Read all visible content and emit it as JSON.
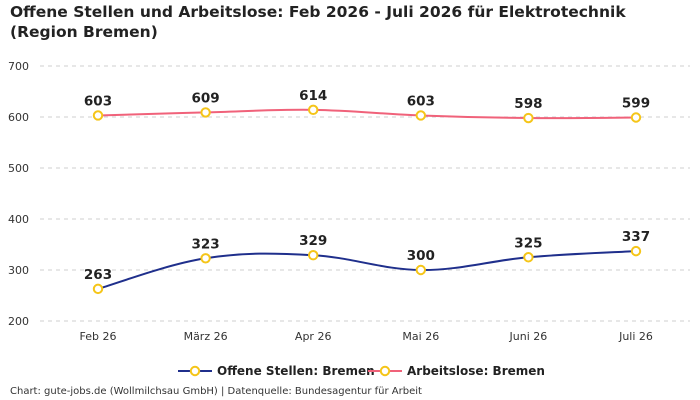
{
  "chart_data": {
    "type": "line",
    "title": "Offene Stellen und Arbeitslose: Feb 2026 - Juli 2026 für Elektrotechnik (Region Bremen)",
    "categories": [
      "Feb 26",
      "März 26",
      "Apr 26",
      "Mai 26",
      "Juni 26",
      "Juli 26"
    ],
    "series": [
      {
        "name": "Offene Stellen: Bremen",
        "values": [
          263,
          323,
          329,
          300,
          325,
          337
        ],
        "color": "#1f2f8c"
      },
      {
        "name": "Arbeitslose: Bremen",
        "values": [
          603,
          609,
          614,
          603,
          598,
          599
        ],
        "color": "#f0627a"
      }
    ],
    "ylim": [
      200,
      700
    ],
    "yticks": [
      200,
      300,
      400,
      500,
      600,
      700
    ],
    "xlabel": "",
    "ylabel": "",
    "grid": true,
    "legend_position": "bottom",
    "marker_color": "#f5c518"
  },
  "footer": "Chart: gute-jobs.de (Wollmilchsau GmbH) | Datenquelle: Bundesagentur für Arbeit"
}
